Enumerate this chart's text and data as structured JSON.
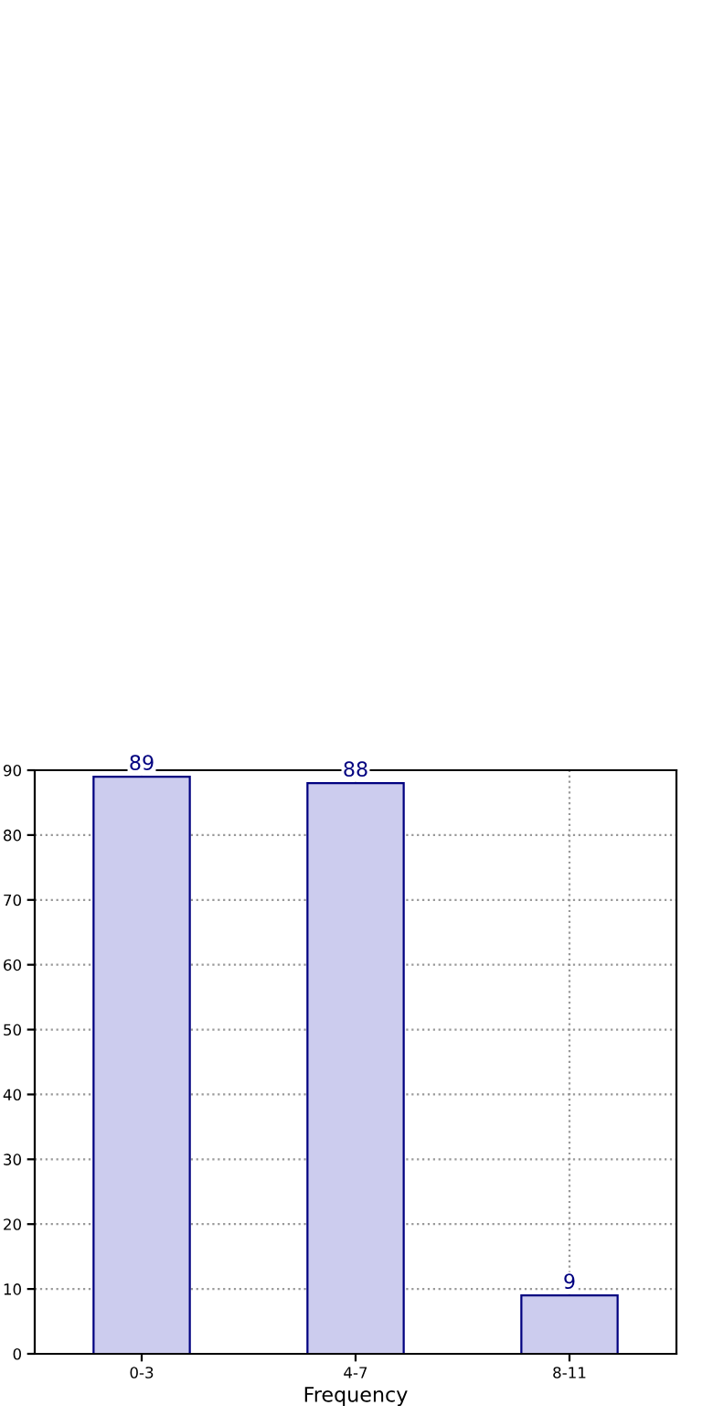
{
  "chart_data": {
    "type": "bar",
    "xlabel": "Frequency",
    "categories": [
      "0-3",
      "4-7",
      "8-11"
    ],
    "values": [
      89,
      88,
      9
    ],
    "color": "#ccccee",
    "ylim": [
      0,
      90
    ],
    "yticks": [
      0,
      10,
      20,
      30,
      40,
      50,
      60,
      70,
      80,
      90
    ],
    "grid": true,
    "line_style": "dotted",
    "data_labels": true,
    "legend": false
  }
}
